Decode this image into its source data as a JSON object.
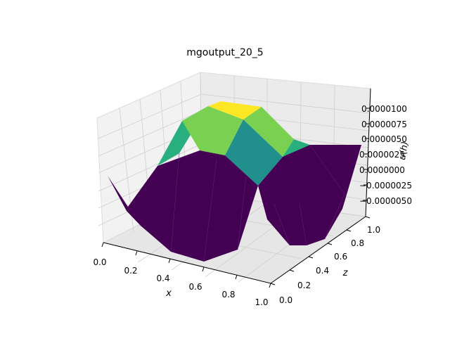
{
  "chart_data": {
    "type": "surface3d",
    "title": "mgoutput_20_5",
    "xlabel": "x",
    "ylabel": "z",
    "zlabel": "u(h)",
    "x_ticks": [
      "0.0",
      "0.2",
      "0.4",
      "0.6",
      "0.8",
      "1.0"
    ],
    "y_ticks": [
      "0.0",
      "0.2",
      "0.4",
      "0.6",
      "0.8",
      "1.0"
    ],
    "z_ticks": [
      "−0.0000050",
      "−0.0000025",
      "0.0000000",
      "0.0000025",
      "0.0000050",
      "0.0000075",
      "0.0000100"
    ],
    "colormap": [
      "#440154",
      "#21908d",
      "#29af7f",
      "#5ec962",
      "#7ad151",
      "#fde725"
    ],
    "grid": true
  }
}
